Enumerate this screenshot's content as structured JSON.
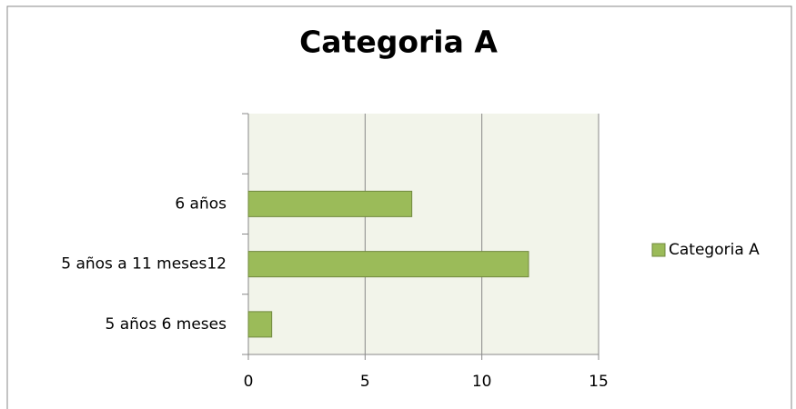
{
  "chart_data": {
    "type": "barh",
    "title": "Categoria A",
    "categories": [
      "5 años 6 meses",
      "5 años a 11 meses12",
      "6 años",
      null
    ],
    "series": [
      {
        "name": "Categoria A",
        "color": "#9bbb59",
        "values": [
          1,
          12,
          7,
          null
        ]
      }
    ],
    "xlim": [
      0,
      15
    ],
    "xticks": [
      0,
      5,
      10,
      15
    ],
    "grid": true,
    "legend": "right"
  }
}
